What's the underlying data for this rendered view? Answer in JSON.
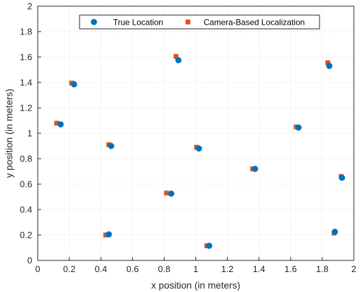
{
  "chart_data": {
    "type": "scatter",
    "title": "",
    "xlabel": "x position (in meters)",
    "ylabel": "y position (in meters)",
    "xlim": [
      0,
      2
    ],
    "ylim": [
      0,
      2
    ],
    "xticks": [
      "0",
      "0.2",
      "0.4",
      "0.6",
      "0.8",
      "1",
      "1.2",
      "1.4",
      "1.6",
      "1.8",
      "2"
    ],
    "yticks": [
      "0",
      "0.2",
      "0.4",
      "0.6",
      "0.8",
      "1",
      "1.2",
      "1.4",
      "1.6",
      "1.8",
      "2"
    ],
    "grid": true,
    "legend_position": "top-center",
    "series": [
      {
        "name": "True Location",
        "marker": "circle",
        "color": "#0072BD",
        "points": [
          [
            0.23,
            1.385
          ],
          [
            0.145,
            1.07
          ],
          [
            0.465,
            0.9
          ],
          [
            0.89,
            1.575
          ],
          [
            1.02,
            0.88
          ],
          [
            1.375,
            0.72
          ],
          [
            1.65,
            1.045
          ],
          [
            1.845,
            1.53
          ],
          [
            1.925,
            0.65
          ],
          [
            0.845,
            0.525
          ],
          [
            0.45,
            0.205
          ],
          [
            1.085,
            0.115
          ],
          [
            1.88,
            0.225
          ]
        ]
      },
      {
        "name": "Camera-Based Localization",
        "marker": "square",
        "color": "#D95319",
        "points": [
          [
            0.215,
            1.395
          ],
          [
            0.12,
            1.08
          ],
          [
            0.45,
            0.91
          ],
          [
            0.875,
            1.605
          ],
          [
            1.005,
            0.89
          ],
          [
            1.36,
            0.72
          ],
          [
            1.635,
            1.05
          ],
          [
            1.835,
            1.555
          ],
          [
            1.92,
            0.66
          ],
          [
            0.815,
            0.53
          ],
          [
            0.43,
            0.2
          ],
          [
            1.07,
            0.115
          ],
          [
            1.875,
            0.215
          ]
        ]
      }
    ]
  }
}
